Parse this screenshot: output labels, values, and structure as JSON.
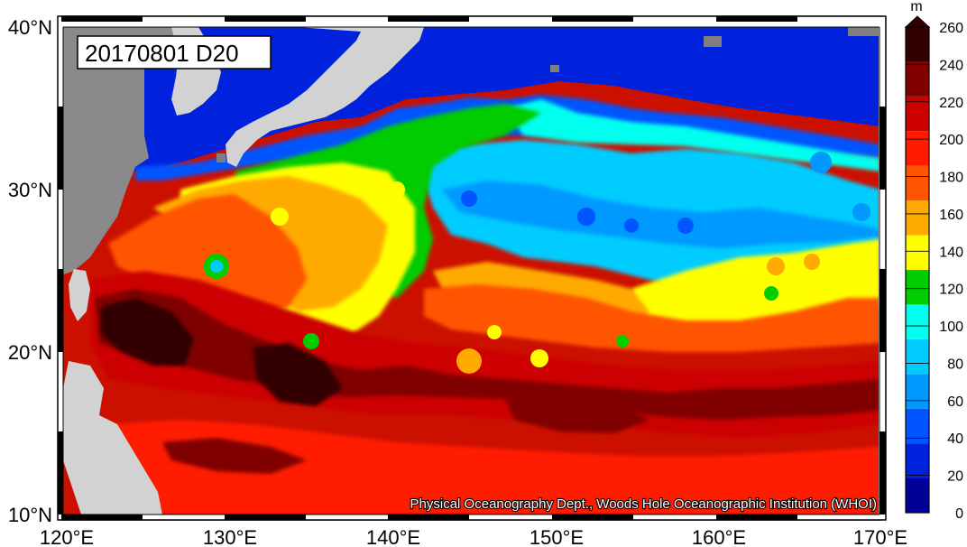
{
  "map": {
    "date_label": "20170801 D20",
    "credit": "Physical Oceanography Dept., Woods Hole Oceanographic Institution (WHOI)",
    "lon_ticks": [
      "120°E",
      "130°E",
      "140°E",
      "150°E",
      "160°E",
      "170°E"
    ],
    "lat_ticks": [
      "40°N",
      "30°N",
      "20°N",
      "10°N"
    ],
    "land_color": "#8a8a8a",
    "land_light_color": "#d2d2d2",
    "missing_color": "#7f7f7f"
  },
  "colorbar": {
    "unit": "m",
    "ticks": [
      "260",
      "240",
      "220",
      "200",
      "180",
      "160",
      "140",
      "120",
      "100",
      "80",
      "60",
      "40",
      "20",
      "0"
    ],
    "colors": [
      "#000099",
      "#0022dd",
      "#0055ff",
      "#0099ff",
      "#00ccff",
      "#00ffee",
      "#00cc00",
      "#ffff00",
      "#ffaa00",
      "#ff5500",
      "#ff1a00",
      "#cc0000",
      "#800000",
      "#330000"
    ]
  }
}
